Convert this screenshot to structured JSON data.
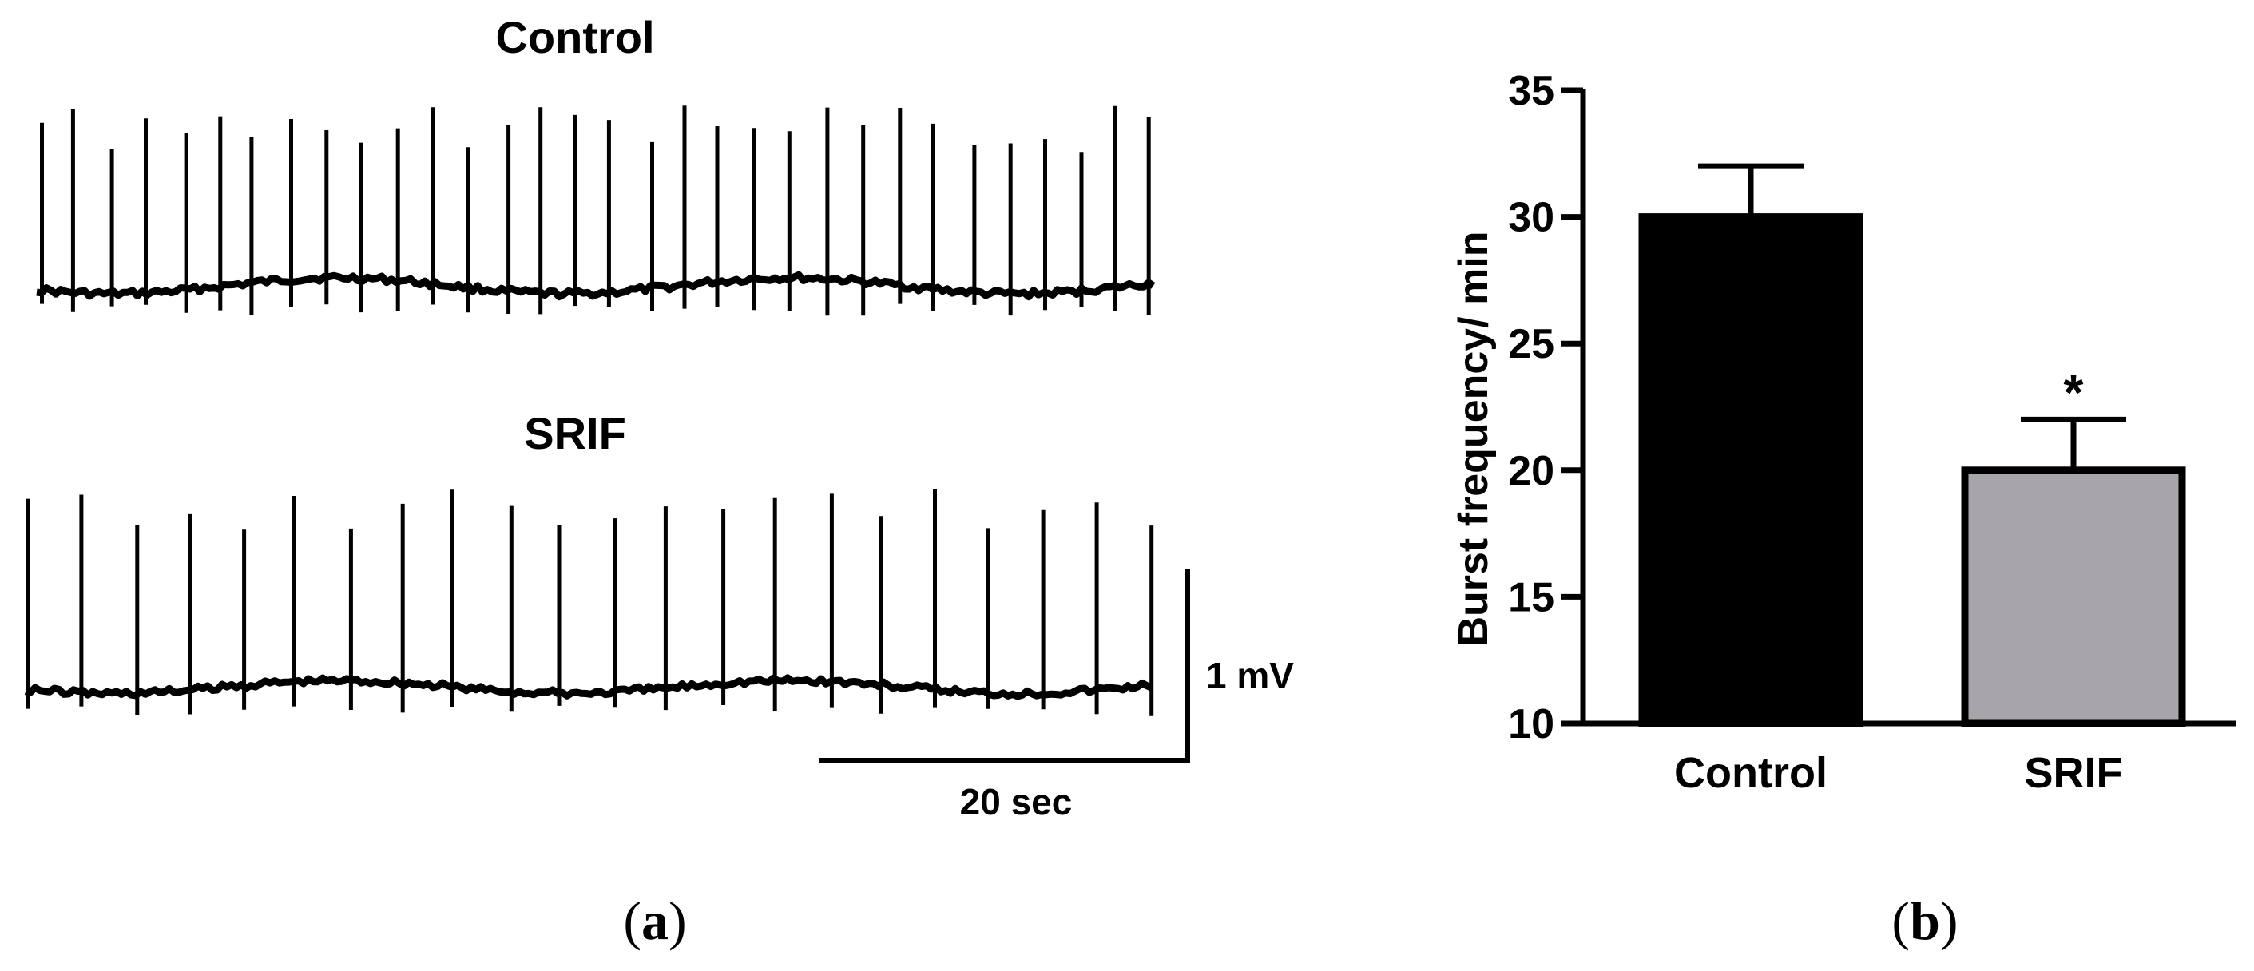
{
  "panel_a": {
    "label_open": "(",
    "label_letter": "a",
    "label_close": ")",
    "traces": [
      {
        "title": "Control",
        "spike_count": 32
      },
      {
        "title": "SRIF",
        "spike_count": 22
      }
    ],
    "scale_bar": {
      "voltage_label": "1 mV",
      "time_label": "20 sec"
    }
  },
  "panel_b": {
    "label_open": "(",
    "label_letter": "b",
    "label_close": ")"
  },
  "colors": {
    "control_bar": "#000000",
    "srif_bar": "#a7a5aa",
    "ink": "#000000"
  },
  "chart_data": [
    {
      "type": "line",
      "title": "Control",
      "description_series": "membrane potential trace with burst spikes",
      "x_duration_sec": 60,
      "spike_count": 32
    },
    {
      "type": "line",
      "title": "SRIF",
      "description_series": "membrane potential trace with burst spikes",
      "x_duration_sec": 60,
      "spike_count": 22
    },
    {
      "type": "bar",
      "title": "",
      "categories": [
        "Control",
        "SRIF"
      ],
      "values": [
        30,
        20
      ],
      "errors": [
        2,
        2
      ],
      "significance": [
        "",
        "*"
      ],
      "xlabel": "",
      "ylabel": "Burst frequency/ min",
      "ylim": [
        10,
        35
      ],
      "yticks": [
        10,
        15,
        20,
        25,
        30,
        35
      ]
    }
  ]
}
